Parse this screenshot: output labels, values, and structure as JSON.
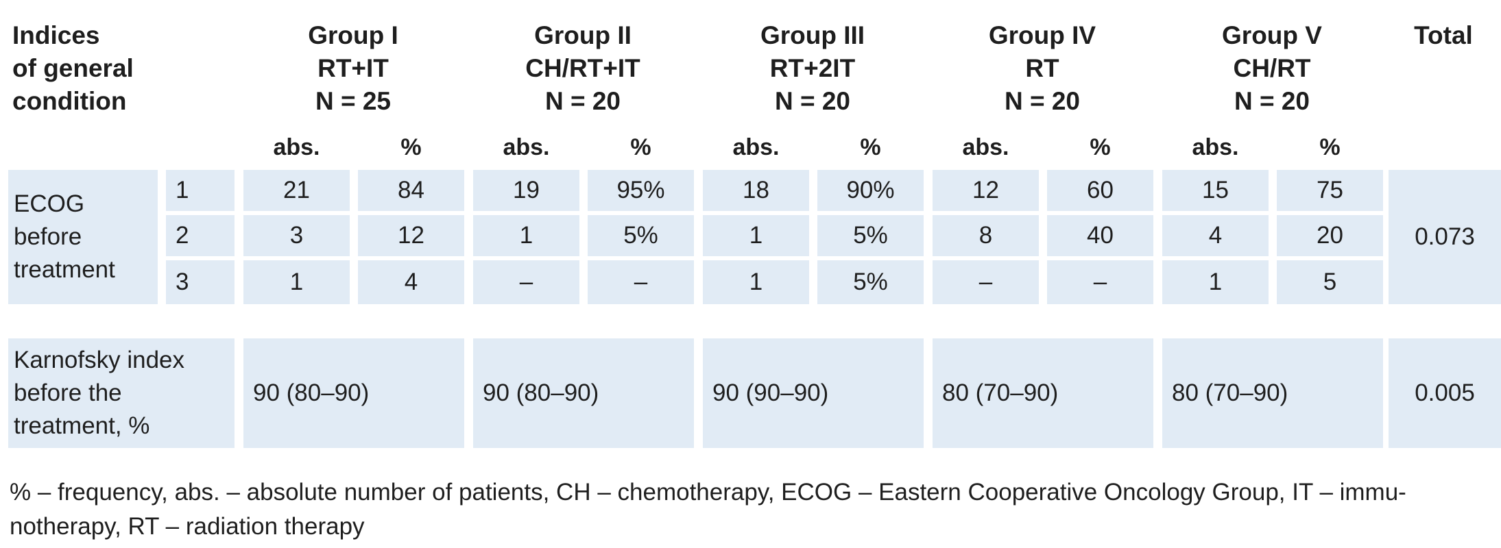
{
  "header": {
    "indices": [
      "Indices",
      "of general",
      "condition"
    ],
    "groups": [
      {
        "name": "Group I",
        "therapy": "RT+IT",
        "n": "N = 25"
      },
      {
        "name": "Group II",
        "therapy": "CH/RT+IT",
        "n": "N = 20"
      },
      {
        "name": "Group III",
        "therapy": "RT+2IT",
        "n": "N = 20"
      },
      {
        "name": "Group IV",
        "therapy": "RT",
        "n": "N = 20"
      },
      {
        "name": "Group V",
        "therapy": "CH/RT",
        "n": "N = 20"
      }
    ],
    "total": "Total",
    "abs": "abs.",
    "pct": "%"
  },
  "ecog": {
    "label": [
      "ECOG",
      "before",
      "treatment"
    ],
    "rows": [
      {
        "grade": "1",
        "values": [
          "21",
          "84",
          "19",
          "95%",
          "18",
          "90%",
          "12",
          "60",
          "15",
          "75"
        ]
      },
      {
        "grade": "2",
        "values": [
          "3",
          "12",
          "1",
          "5%",
          "1",
          "5%",
          "8",
          "40",
          "4",
          "20"
        ]
      },
      {
        "grade": "3",
        "values": [
          "1",
          "4",
          "–",
          "–",
          "1",
          "5%",
          "–",
          "–",
          "1",
          "5"
        ]
      }
    ],
    "total": "0.073"
  },
  "karnofsky": {
    "label": [
      "Karnofsky index",
      "before the",
      "treatment, %"
    ],
    "values": [
      "90 (80–90)",
      "90 (80–90)",
      "90 (90–90)",
      "80 (70–90)",
      "80 (70–90)"
    ],
    "total": "0.005"
  },
  "footnote": [
    "% – frequency, abs. – absolute number of patients, CH – chemotherapy, ECOG – Eastern Cooperative Oncology Group, IT – immu-",
    "notherapy, RT – radiation therapy"
  ]
}
